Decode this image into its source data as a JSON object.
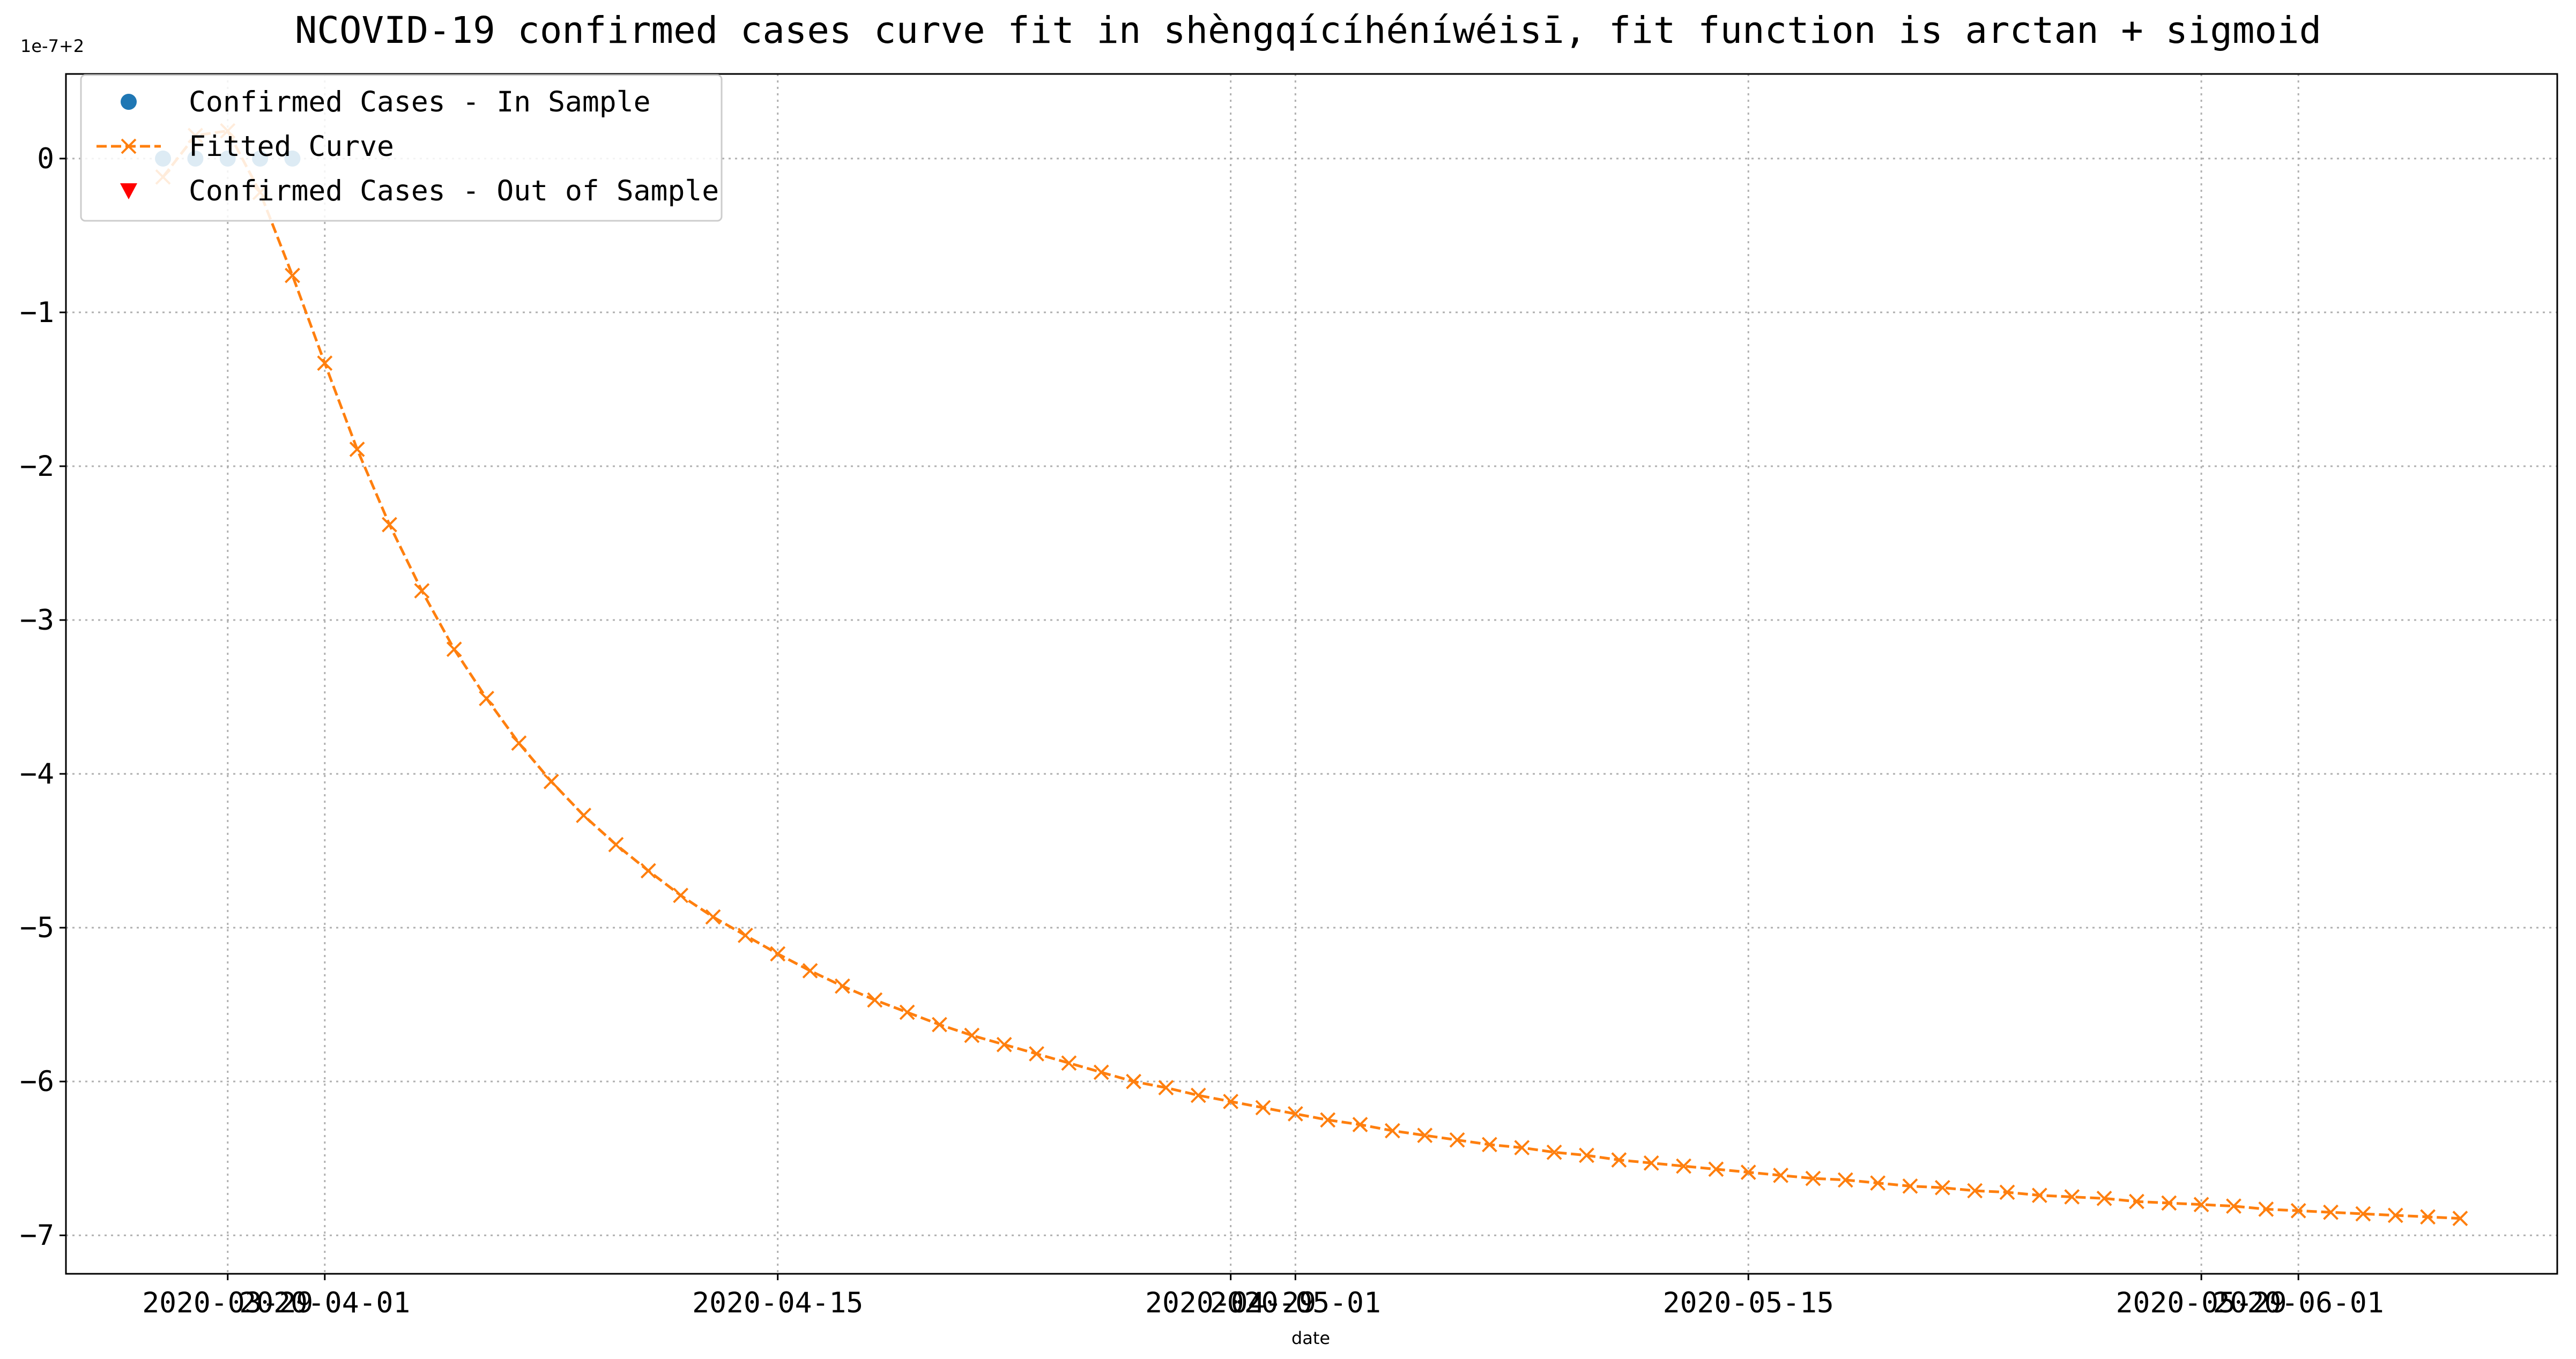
{
  "chart_data": {
    "type": "line",
    "title": "NCOVID-19 confirmed cases curve fit in shèngqícíhéníwéisī, fit function is arctan + sigmoid",
    "xlabel": "date",
    "ylabel": "",
    "offset_label": "1e-7+2",
    "xlim": [
      "2020-03-24",
      "2020-06-09"
    ],
    "ylim": [
      -7.25,
      0.55
    ],
    "grid": true,
    "legend_position": "upper left",
    "x_ticks": [
      "2020-03-29",
      "2020-04-01",
      "2020-04-15",
      "2020-04-29",
      "2020-05-01",
      "2020-05-15",
      "2020-05-29",
      "2020-06-01"
    ],
    "y_ticks": [
      0,
      -1,
      -2,
      -3,
      -4,
      -5,
      -6,
      -7
    ],
    "colors": {
      "in_sample": "#1f77b4",
      "fitted": "#ff7f0e",
      "out_sample": "#ff0000"
    },
    "series": [
      {
        "name": "Confirmed Cases - In Sample",
        "style": "dot",
        "points": [
          [
            "2020-03-27",
            0.0
          ],
          [
            "2020-03-28",
            0.0
          ],
          [
            "2020-03-29",
            0.0
          ],
          [
            "2020-03-30",
            0.0
          ],
          [
            "2020-03-31",
            0.0
          ]
        ]
      },
      {
        "name": "Fitted Curve",
        "style": "dashed-x",
        "start_date": "2020-03-27",
        "values": [
          -0.12,
          0.15,
          0.18,
          -0.22,
          -0.76,
          -1.33,
          -1.89,
          -2.38,
          -2.81,
          -3.19,
          -3.51,
          -3.8,
          -4.05,
          -4.27,
          -4.46,
          -4.63,
          -4.79,
          -4.93,
          -5.05,
          -5.17,
          -5.28,
          -5.38,
          -5.47,
          -5.55,
          -5.63,
          -5.7,
          -5.76,
          -5.82,
          -5.88,
          -5.94,
          -6.0,
          -6.04,
          -6.09,
          -6.13,
          -6.17,
          -6.21,
          -6.25,
          -6.28,
          -6.32,
          -6.35,
          -6.38,
          -6.41,
          -6.43,
          -6.46,
          -6.48,
          -6.51,
          -6.53,
          -6.55,
          -6.57,
          -6.59,
          -6.61,
          -6.63,
          -6.64,
          -6.66,
          -6.68,
          -6.69,
          -6.71,
          -6.72,
          -6.74,
          -6.75,
          -6.76,
          -6.78,
          -6.79,
          -6.8,
          -6.81,
          -6.83,
          -6.84,
          -6.85,
          -6.86,
          -6.87,
          -6.88,
          -6.89
        ]
      },
      {
        "name": "Confirmed Cases - Out of Sample",
        "style": "triangle",
        "points": []
      }
    ]
  }
}
